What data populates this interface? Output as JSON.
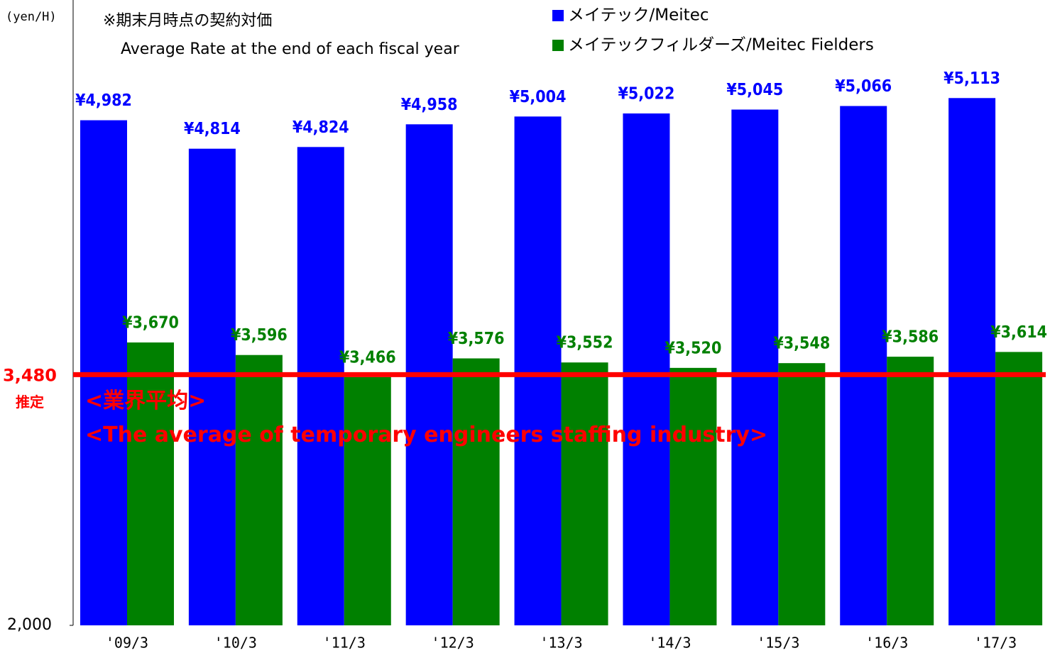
{
  "chart_data": {
    "type": "bar",
    "y_label": "(yen/H)",
    "annotations": [
      "※期末月時点の契約対価",
      "Average Rate at the end of each fiscal year"
    ],
    "categories": [
      "'09/3",
      "'10/3",
      "'11/3",
      "'12/3",
      "'13/3",
      "'14/3",
      "'15/3",
      "'16/3",
      "'17/3"
    ],
    "series": [
      {
        "name": "メイテック/Meitec",
        "color": "#0000ff",
        "values": [
          4982,
          4814,
          4824,
          4958,
          5004,
          5022,
          5045,
          5066,
          5113
        ],
        "value_labels": [
          "¥4,982",
          "¥4,814",
          "¥4,824",
          "¥4,958",
          "¥5,004",
          "¥5,022",
          "¥5,045",
          "¥5,066",
          "¥5,113"
        ]
      },
      {
        "name": "メイテックフィルダーズ/Meitec Fielders",
        "color": "#008000",
        "values": [
          3670,
          3596,
          3466,
          3576,
          3552,
          3520,
          3548,
          3586,
          3614
        ],
        "value_labels": [
          "¥3,670",
          "¥3,596",
          "¥3,466",
          "¥3,576",
          "¥3,552",
          "¥3,520",
          "¥3,548",
          "¥3,586",
          "¥3,614"
        ]
      }
    ],
    "ylim": [
      2000,
      5650
    ],
    "yticks": [
      {
        "value": 2000,
        "label": "2,000"
      }
    ],
    "reference_line": {
      "value": 3480,
      "label": "3,480",
      "note": "推定",
      "color": "#ff0000",
      "texts": [
        "<業界平均>",
        "<The average of temporary engineers staffing industry>"
      ]
    },
    "legend": "top"
  }
}
